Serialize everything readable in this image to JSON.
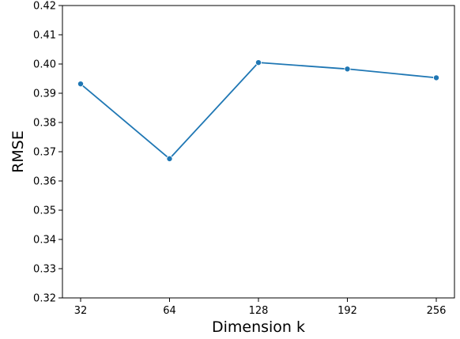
{
  "chart_data": {
    "type": "line",
    "title": "",
    "xlabel": "Dimension k",
    "ylabel": "RMSE",
    "categories": [
      "32",
      "64",
      "128",
      "192",
      "256"
    ],
    "series": [
      {
        "values": [
          0.3932,
          0.3676,
          0.4005,
          0.3983,
          0.3953
        ]
      }
    ],
    "ylim": [
      0.32,
      0.42
    ],
    "yticks": [
      "0.32",
      "0.33",
      "0.34",
      "0.35",
      "0.36",
      "0.37",
      "0.38",
      "0.39",
      "0.40",
      "0.41",
      "0.42"
    ],
    "grid": false,
    "line_color": "#1f77b4",
    "marker": "circle"
  }
}
